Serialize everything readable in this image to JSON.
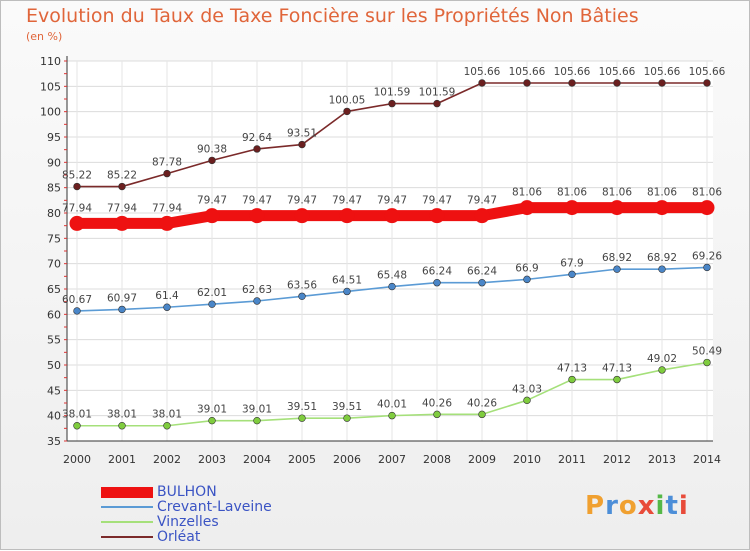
{
  "chart_data": {
    "type": "line",
    "title": "Evolution du Taux de Taxe Foncière sur les Propriétés Non Bâties",
    "subtitle": "(en %)",
    "xlabel": "",
    "ylabel": "",
    "ylim": [
      35,
      110
    ],
    "yticks": [
      35,
      40,
      45,
      50,
      55,
      60,
      65,
      70,
      75,
      80,
      85,
      90,
      95,
      100,
      105,
      110
    ],
    "grid": true,
    "legend_position": "bottom-left",
    "x": [
      "2000",
      "2001",
      "2002",
      "2003",
      "2004",
      "2005",
      "2006",
      "2007",
      "2008",
      "2009",
      "2010",
      "2011",
      "2012",
      "2013",
      "2014"
    ],
    "series": [
      {
        "name": "BULHON",
        "color": "#ee1111",
        "bold": true,
        "values": [
          77.94,
          77.94,
          77.94,
          79.47,
          79.47,
          79.47,
          79.47,
          79.47,
          79.47,
          79.47,
          81.06,
          81.06,
          81.06,
          81.06,
          81.06
        ],
        "labels": [
          "77.94",
          "77.94",
          "77.94",
          "79.47",
          "79.47",
          "79.47",
          "79.47",
          "79.47",
          "79.47",
          "79.47",
          "81.06",
          "81.06",
          "81.06",
          "81.06",
          "81.06"
        ]
      },
      {
        "name": "Crevant-Laveine",
        "color": "#5b9bd5",
        "marker": "#4a86c8",
        "values": [
          60.67,
          60.97,
          61.4,
          62.01,
          62.63,
          63.56,
          64.51,
          65.48,
          66.24,
          66.24,
          66.9,
          67.9,
          68.92,
          68.92,
          69.26
        ],
        "labels": [
          "60.67",
          "60.97",
          "61.4",
          "62.01",
          "62.63",
          "63.56",
          "64.51",
          "65.48",
          "66.24",
          "66.24",
          "66.9",
          "67.9",
          "68.92",
          "68.92",
          "69.26"
        ]
      },
      {
        "name": "Vinzelles",
        "color": "#a5e07a",
        "marker": "#7fcc3e",
        "values": [
          38.01,
          38.01,
          38.01,
          39.01,
          39.01,
          39.51,
          39.51,
          40.01,
          40.26,
          40.26,
          43.03,
          47.13,
          47.13,
          49.02,
          50.49
        ],
        "labels": [
          "38.01",
          "38.01",
          "38.01",
          "39.01",
          "39.01",
          "39.51",
          "39.51",
          "40.01",
          "40.26",
          "40.26",
          "43.03",
          "47.13",
          "47.13",
          "49.02",
          "50.49"
        ]
      },
      {
        "name": "Orléat",
        "color": "#7b2a2a",
        "marker": "#6b1f1f",
        "values": [
          85.22,
          85.22,
          87.78,
          90.38,
          92.64,
          93.51,
          100.05,
          101.59,
          101.59,
          105.66,
          105.66,
          105.66,
          105.66,
          105.66,
          105.66
        ],
        "labels": [
          "85.22",
          "85.22",
          "87.78",
          "90.38",
          "92.64",
          "93.51",
          "100.05",
          "101.59",
          "101.59",
          "105.66",
          "105.66",
          "105.66",
          "105.66",
          "105.66",
          "105.66"
        ]
      }
    ]
  },
  "logo_text": "Proxiti"
}
